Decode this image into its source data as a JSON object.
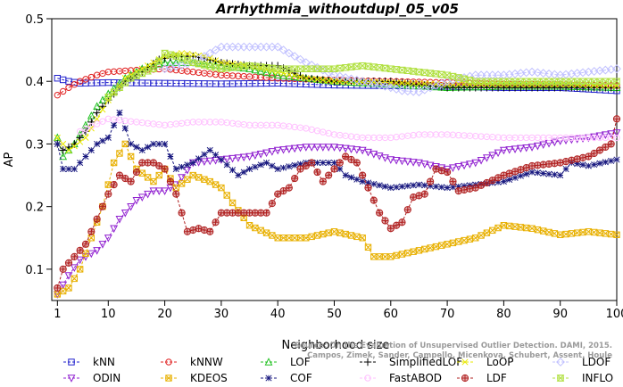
{
  "chart_data": {
    "type": "line",
    "title": "Arrhythmia_withoutdupl_05_v05",
    "xlabel": "Neighborhood size",
    "ylabel": "AP",
    "xlim": [
      0,
      100
    ],
    "ylim": [
      0.05,
      0.5
    ],
    "x_ticks": [
      1,
      10,
      20,
      30,
      40,
      50,
      60,
      70,
      80,
      90,
      100
    ],
    "y_ticks": [
      0.1,
      0.2,
      0.3,
      0.4,
      0.5
    ],
    "grid": false,
    "legend_position": "bottom",
    "credit": [
      "Source: On the Evaluation of Unsupervised Outlier Detection. DAMI, 2015.",
      "Campos, Zimek, Sander, Campello, Micenkova, Schubert, Assent, Houle"
    ],
    "series": [
      {
        "name": "kNN",
        "color": "#1f1fcc",
        "marker": "square",
        "values": [
          [
            1,
            0.405
          ],
          [
            3,
            0.4
          ],
          [
            5,
            0.397
          ],
          [
            10,
            0.398
          ],
          [
            20,
            0.397
          ],
          [
            30,
            0.396
          ],
          [
            40,
            0.397
          ],
          [
            50,
            0.394
          ],
          [
            60,
            0.393
          ],
          [
            70,
            0.392
          ],
          [
            80,
            0.39
          ],
          [
            90,
            0.39
          ],
          [
            100,
            0.385
          ]
        ]
      },
      {
        "name": "kNNW",
        "color": "#e02020",
        "marker": "circle",
        "values": [
          [
            1,
            0.378
          ],
          [
            3,
            0.39
          ],
          [
            5,
            0.4
          ],
          [
            8,
            0.41
          ],
          [
            10,
            0.415
          ],
          [
            15,
            0.418
          ],
          [
            20,
            0.42
          ],
          [
            25,
            0.415
          ],
          [
            30,
            0.41
          ],
          [
            40,
            0.405
          ],
          [
            50,
            0.402
          ],
          [
            60,
            0.4
          ],
          [
            70,
            0.398
          ],
          [
            80,
            0.396
          ],
          [
            90,
            0.395
          ],
          [
            100,
            0.393
          ]
        ]
      },
      {
        "name": "LOF",
        "color": "#20c020",
        "marker": "triangle-up",
        "values": [
          [
            1,
            0.31
          ],
          [
            2,
            0.28
          ],
          [
            4,
            0.3
          ],
          [
            6,
            0.33
          ],
          [
            8,
            0.36
          ],
          [
            10,
            0.38
          ],
          [
            13,
            0.405
          ],
          [
            16,
            0.42
          ],
          [
            20,
            0.43
          ],
          [
            25,
            0.43
          ],
          [
            30,
            0.425
          ],
          [
            35,
            0.42
          ],
          [
            40,
            0.41
          ],
          [
            45,
            0.405
          ],
          [
            50,
            0.4
          ],
          [
            60,
            0.395
          ],
          [
            70,
            0.39
          ],
          [
            80,
            0.392
          ],
          [
            90,
            0.392
          ],
          [
            100,
            0.39
          ]
        ]
      },
      {
        "name": "SimplifiedLOF",
        "color": "#000000",
        "marker": "plus",
        "values": [
          [
            1,
            0.3
          ],
          [
            2,
            0.29
          ],
          [
            4,
            0.3
          ],
          [
            6,
            0.32
          ],
          [
            8,
            0.35
          ],
          [
            10,
            0.37
          ],
          [
            13,
            0.4
          ],
          [
            16,
            0.415
          ],
          [
            19,
            0.435
          ],
          [
            22,
            0.44
          ],
          [
            25,
            0.44
          ],
          [
            30,
            0.43
          ],
          [
            35,
            0.425
          ],
          [
            40,
            0.425
          ],
          [
            45,
            0.405
          ],
          [
            50,
            0.4
          ],
          [
            60,
            0.4
          ],
          [
            70,
            0.39
          ],
          [
            80,
            0.39
          ],
          [
            90,
            0.39
          ],
          [
            100,
            0.39
          ]
        ]
      },
      {
        "name": "LoOP",
        "color": "#e8e800",
        "marker": "x",
        "values": [
          [
            1,
            0.31
          ],
          [
            3,
            0.29
          ],
          [
            6,
            0.31
          ],
          [
            10,
            0.37
          ],
          [
            13,
            0.405
          ],
          [
            17,
            0.425
          ],
          [
            20,
            0.44
          ],
          [
            23,
            0.445
          ],
          [
            27,
            0.44
          ],
          [
            30,
            0.43
          ],
          [
            35,
            0.425
          ],
          [
            40,
            0.415
          ],
          [
            45,
            0.405
          ],
          [
            50,
            0.4
          ],
          [
            60,
            0.398
          ],
          [
            70,
            0.395
          ],
          [
            80,
            0.395
          ],
          [
            90,
            0.395
          ],
          [
            100,
            0.393
          ]
        ]
      },
      {
        "name": "LDOF",
        "color": "#c0c0ff",
        "marker": "diamond",
        "values": [
          [
            20,
            0.42
          ],
          [
            25,
            0.43
          ],
          [
            30,
            0.455
          ],
          [
            35,
            0.455
          ],
          [
            40,
            0.455
          ],
          [
            45,
            0.43
          ],
          [
            50,
            0.41
          ],
          [
            55,
            0.4
          ],
          [
            60,
            0.39
          ],
          [
            62,
            0.385
          ],
          [
            65,
            0.383
          ],
          [
            70,
            0.4
          ],
          [
            75,
            0.41
          ],
          [
            80,
            0.41
          ],
          [
            85,
            0.415
          ],
          [
            90,
            0.41
          ],
          [
            95,
            0.415
          ],
          [
            100,
            0.42
          ]
        ]
      },
      {
        "name": "ODIN",
        "color": "#9020d0",
        "marker": "triangle-down",
        "values": [
          [
            1,
            0.06
          ],
          [
            3,
            0.09
          ],
          [
            5,
            0.115
          ],
          [
            8,
            0.13
          ],
          [
            10,
            0.15
          ],
          [
            12,
            0.18
          ],
          [
            15,
            0.21
          ],
          [
            18,
            0.225
          ],
          [
            20,
            0.225
          ],
          [
            22,
            0.235
          ],
          [
            25,
            0.27
          ],
          [
            30,
            0.275
          ],
          [
            35,
            0.28
          ],
          [
            40,
            0.29
          ],
          [
            45,
            0.295
          ],
          [
            50,
            0.295
          ],
          [
            55,
            0.29
          ],
          [
            60,
            0.275
          ],
          [
            65,
            0.27
          ],
          [
            70,
            0.26
          ],
          [
            75,
            0.27
          ],
          [
            80,
            0.29
          ],
          [
            85,
            0.295
          ],
          [
            90,
            0.305
          ],
          [
            95,
            0.31
          ],
          [
            100,
            0.318
          ]
        ]
      },
      {
        "name": "KDEOS",
        "color": "#e8b000",
        "marker": "square-x",
        "values": [
          [
            1,
            0.06
          ],
          [
            3,
            0.07
          ],
          [
            5,
            0.1
          ],
          [
            7,
            0.15
          ],
          [
            9,
            0.2
          ],
          [
            11,
            0.27
          ],
          [
            13,
            0.3
          ],
          [
            15,
            0.26
          ],
          [
            18,
            0.24
          ],
          [
            20,
            0.26
          ],
          [
            22,
            0.23
          ],
          [
            25,
            0.25
          ],
          [
            28,
            0.24
          ],
          [
            30,
            0.23
          ],
          [
            35,
            0.17
          ],
          [
            40,
            0.15
          ],
          [
            45,
            0.15
          ],
          [
            50,
            0.16
          ],
          [
            55,
            0.15
          ],
          [
            57,
            0.12
          ],
          [
            60,
            0.12
          ],
          [
            65,
            0.13
          ],
          [
            70,
            0.14
          ],
          [
            75,
            0.15
          ],
          [
            80,
            0.17
          ],
          [
            85,
            0.165
          ],
          [
            90,
            0.155
          ],
          [
            95,
            0.16
          ],
          [
            100,
            0.155
          ]
        ]
      },
      {
        "name": "COF",
        "color": "#1a1a80",
        "marker": "asterisk",
        "values": [
          [
            1,
            0.3
          ],
          [
            2,
            0.26
          ],
          [
            4,
            0.26
          ],
          [
            6,
            0.28
          ],
          [
            8,
            0.3
          ],
          [
            10,
            0.31
          ],
          [
            12,
            0.35
          ],
          [
            14,
            0.3
          ],
          [
            16,
            0.29
          ],
          [
            18,
            0.3
          ],
          [
            20,
            0.3
          ],
          [
            22,
            0.26
          ],
          [
            25,
            0.27
          ],
          [
            28,
            0.29
          ],
          [
            30,
            0.275
          ],
          [
            33,
            0.25
          ],
          [
            35,
            0.26
          ],
          [
            38,
            0.27
          ],
          [
            40,
            0.26
          ],
          [
            45,
            0.27
          ],
          [
            50,
            0.27
          ],
          [
            52,
            0.25
          ],
          [
            55,
            0.24
          ],
          [
            60,
            0.23
          ],
          [
            65,
            0.235
          ],
          [
            70,
            0.23
          ],
          [
            75,
            0.235
          ],
          [
            80,
            0.24
          ],
          [
            85,
            0.255
          ],
          [
            90,
            0.25
          ],
          [
            92,
            0.27
          ],
          [
            95,
            0.265
          ],
          [
            100,
            0.275
          ]
        ]
      },
      {
        "name": "FastABOD",
        "color": "#ffc0ff",
        "marker": "circle-open",
        "values": [
          [
            5,
            0.32
          ],
          [
            10,
            0.34
          ],
          [
            15,
            0.335
          ],
          [
            20,
            0.33
          ],
          [
            25,
            0.335
          ],
          [
            30,
            0.335
          ],
          [
            35,
            0.33
          ],
          [
            40,
            0.33
          ],
          [
            45,
            0.325
          ],
          [
            50,
            0.315
          ],
          [
            55,
            0.31
          ],
          [
            60,
            0.31
          ],
          [
            65,
            0.315
          ],
          [
            70,
            0.315
          ],
          [
            80,
            0.31
          ],
          [
            90,
            0.31
          ],
          [
            100,
            0.31
          ]
        ]
      },
      {
        "name": "LDF",
        "color": "#b02020",
        "marker": "circle-plus",
        "values": [
          [
            1,
            0.07
          ],
          [
            2,
            0.1
          ],
          [
            4,
            0.12
          ],
          [
            6,
            0.14
          ],
          [
            8,
            0.18
          ],
          [
            10,
            0.22
          ],
          [
            12,
            0.25
          ],
          [
            14,
            0.24
          ],
          [
            16,
            0.27
          ],
          [
            18,
            0.27
          ],
          [
            20,
            0.26
          ],
          [
            22,
            0.22
          ],
          [
            24,
            0.16
          ],
          [
            26,
            0.165
          ],
          [
            28,
            0.16
          ],
          [
            30,
            0.19
          ],
          [
            34,
            0.19
          ],
          [
            38,
            0.19
          ],
          [
            40,
            0.22
          ],
          [
            42,
            0.23
          ],
          [
            44,
            0.26
          ],
          [
            46,
            0.27
          ],
          [
            48,
            0.24
          ],
          [
            50,
            0.26
          ],
          [
            52,
            0.28
          ],
          [
            54,
            0.27
          ],
          [
            56,
            0.23
          ],
          [
            58,
            0.19
          ],
          [
            60,
            0.165
          ],
          [
            62,
            0.175
          ],
          [
            64,
            0.215
          ],
          [
            66,
            0.22
          ],
          [
            68,
            0.26
          ],
          [
            70,
            0.255
          ],
          [
            72,
            0.225
          ],
          [
            75,
            0.23
          ],
          [
            80,
            0.25
          ],
          [
            85,
            0.265
          ],
          [
            90,
            0.27
          ],
          [
            95,
            0.28
          ],
          [
            99,
            0.3
          ],
          [
            100,
            0.34
          ]
        ]
      },
      {
        "name": "INFLO",
        "color": "#b0e040",
        "marker": "hourglass",
        "values": [
          [
            10,
            0.375
          ],
          [
            14,
            0.405
          ],
          [
            18,
            0.42
          ],
          [
            20,
            0.445
          ],
          [
            22,
            0.44
          ],
          [
            25,
            0.43
          ],
          [
            30,
            0.42
          ],
          [
            35,
            0.425
          ],
          [
            40,
            0.42
          ],
          [
            45,
            0.42
          ],
          [
            50,
            0.42
          ],
          [
            55,
            0.425
          ],
          [
            60,
            0.42
          ],
          [
            65,
            0.415
          ],
          [
            70,
            0.41
          ],
          [
            75,
            0.4
          ],
          [
            80,
            0.4
          ],
          [
            90,
            0.4
          ],
          [
            100,
            0.4
          ]
        ]
      }
    ]
  }
}
